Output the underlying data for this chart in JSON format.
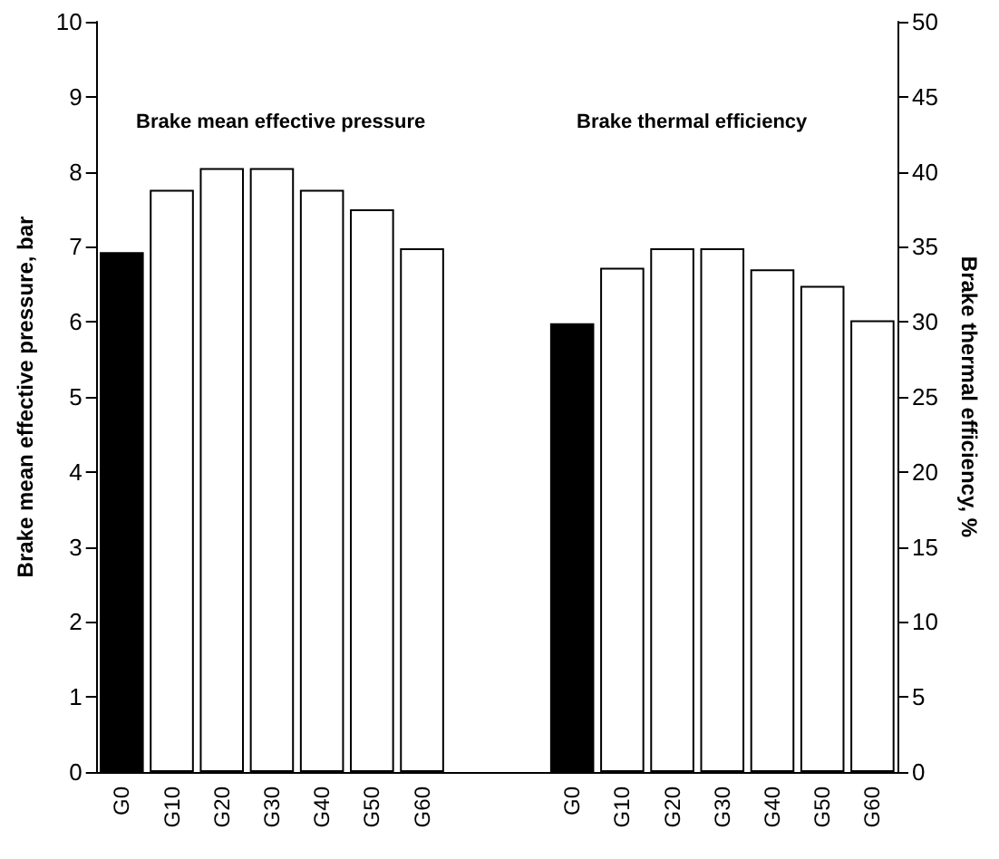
{
  "chart_data": {
    "type": "bar",
    "ylabel": "Brake mean effective pressure, bar",
    "y2label": "Brake thermal efficiency, %",
    "annotations": [
      "Brake mean effective pressure",
      "Brake thermal efficiency"
    ],
    "categories": [
      "G0",
      "G10",
      "G20",
      "G30",
      "G40",
      "G50",
      "G60",
      null,
      null,
      "G0",
      "G10",
      "G20",
      "G30",
      "G40",
      "G50",
      "G60"
    ],
    "series": [
      {
        "colors": [
          "#000000",
          "#ffffff",
          "#ffffff",
          "#ffffff",
          "#ffffff",
          "#ffffff",
          "#ffffff",
          null,
          null,
          null,
          null,
          null,
          null,
          null,
          null,
          null
        ],
        "values": [
          6.93,
          7.76,
          8.05,
          8.05,
          7.76,
          7.5,
          6.98,
          null,
          null,
          null,
          null,
          null,
          null,
          null,
          null,
          null
        ]
      },
      {
        "axis": "y2",
        "colors": [
          null,
          null,
          null,
          null,
          null,
          null,
          null,
          null,
          null,
          "#000000",
          "#ffffff",
          "#ffffff",
          "#ffffff",
          "#ffffff",
          "#ffffff",
          "#ffffff"
        ],
        "values": [
          null,
          null,
          null,
          null,
          null,
          null,
          null,
          null,
          null,
          29.9,
          33.6,
          34.9,
          34.9,
          33.5,
          32.4,
          30.1
        ]
      }
    ],
    "ylim": [
      0,
      10
    ],
    "yticks": [
      0,
      1,
      2,
      3,
      4,
      5,
      6,
      7,
      8,
      9,
      10
    ],
    "y2lim": [
      0,
      50
    ],
    "y2ticks": [
      0,
      5,
      10,
      15,
      20,
      25,
      30,
      35,
      40,
      45,
      50
    ],
    "grid": false
  }
}
